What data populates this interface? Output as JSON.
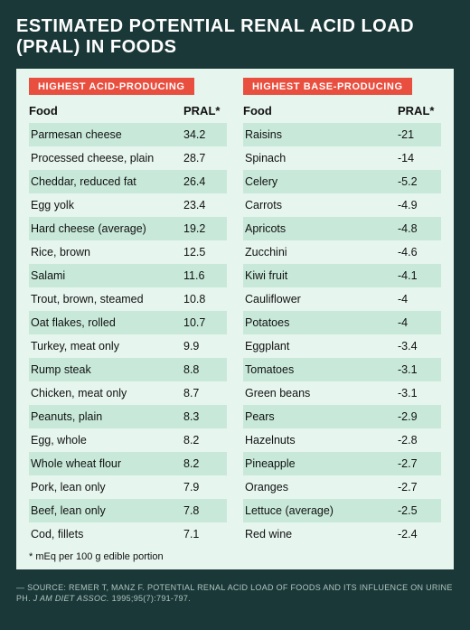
{
  "title": "ESTIMATED POTENTIAL RENAL ACID LOAD (PRAL) IN FOODS",
  "colors": {
    "page_bg": "#1a3838",
    "panel_bg": "#e6f5ee",
    "row_alt_bg": "#c8e9da",
    "badge_bg": "#e94f3f",
    "badge_text": "#ffffff",
    "title_text": "#ffffff",
    "body_text": "#111111",
    "source_text": "#b0c4c0"
  },
  "columns": {
    "food": "Food",
    "pral": "PRAL*"
  },
  "acid": {
    "badge": "HIGHEST ACID-PRODUCING",
    "rows": [
      {
        "food": "Parmesan cheese",
        "pral": "34.2"
      },
      {
        "food": "Processed cheese, plain",
        "pral": "28.7"
      },
      {
        "food": "Cheddar, reduced fat",
        "pral": "26.4"
      },
      {
        "food": "Egg yolk",
        "pral": "23.4"
      },
      {
        "food": "Hard cheese (average)",
        "pral": "19.2"
      },
      {
        "food": "Rice, brown",
        "pral": "12.5"
      },
      {
        "food": "Salami",
        "pral": "11.6"
      },
      {
        "food": "Trout, brown, steamed",
        "pral": "10.8"
      },
      {
        "food": "Oat flakes, rolled",
        "pral": "10.7"
      },
      {
        "food": "Turkey, meat only",
        "pral": "9.9"
      },
      {
        "food": "Rump steak",
        "pral": "8.8"
      },
      {
        "food": "Chicken, meat only",
        "pral": "8.7"
      },
      {
        "food": "Peanuts, plain",
        "pral": "8.3"
      },
      {
        "food": "Egg, whole",
        "pral": "8.2"
      },
      {
        "food": "Whole wheat flour",
        "pral": "8.2"
      },
      {
        "food": "Pork, lean only",
        "pral": "7.9"
      },
      {
        "food": "Beef, lean only",
        "pral": "7.8"
      },
      {
        "food": "Cod, fillets",
        "pral": "7.1"
      }
    ]
  },
  "base": {
    "badge": "HIGHEST BASE-PRODUCING",
    "rows": [
      {
        "food": "Raisins",
        "pral": "-21"
      },
      {
        "food": "Spinach",
        "pral": "-14"
      },
      {
        "food": "Celery",
        "pral": "-5.2"
      },
      {
        "food": "Carrots",
        "pral": "-4.9"
      },
      {
        "food": "Apricots",
        "pral": "-4.8"
      },
      {
        "food": "Zucchini",
        "pral": "-4.6"
      },
      {
        "food": "Kiwi fruit",
        "pral": "-4.1"
      },
      {
        "food": "Cauliflower",
        "pral": "-4"
      },
      {
        "food": "Potatoes",
        "pral": "-4"
      },
      {
        "food": "Eggplant",
        "pral": "-3.4"
      },
      {
        "food": "Tomatoes",
        "pral": "-3.1"
      },
      {
        "food": "Green beans",
        "pral": "-3.1"
      },
      {
        "food": "Pears",
        "pral": "-2.9"
      },
      {
        "food": "Hazelnuts",
        "pral": "-2.8"
      },
      {
        "food": "Pineapple",
        "pral": "-2.7"
      },
      {
        "food": "Oranges",
        "pral": "-2.7"
      },
      {
        "food": "Lettuce (average)",
        "pral": "-2.5"
      },
      {
        "food": "Red wine",
        "pral": "-2.4"
      }
    ]
  },
  "footnote": "* mEq per 100 g edible portion",
  "source": {
    "prefix": "— SOURCE: REMER T, MANZ F. POTENTIAL RENAL ACID LOAD OF FOODS AND ITS INFLUENCE ON URINE PH. ",
    "journal": "J AM DIET ASSOC.",
    "suffix": " 1995;95(7):791-797."
  }
}
